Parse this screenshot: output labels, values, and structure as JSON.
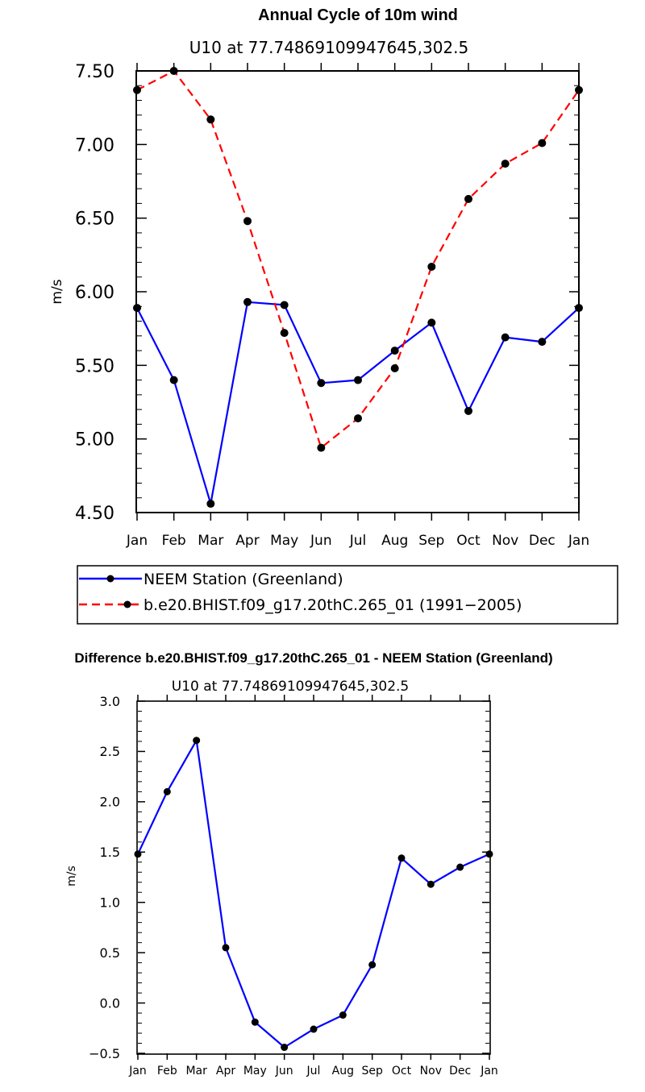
{
  "chart_data": [
    {
      "type": "line",
      "title": "Annual Cycle of 10m wind",
      "subtitle": "U10 at 77.74869109947645,302.5",
      "xlabel": "",
      "ylabel": "m/s",
      "categories": [
        "Jan",
        "Feb",
        "Mar",
        "Apr",
        "May",
        "Jun",
        "Jul",
        "Aug",
        "Sep",
        "Oct",
        "Nov",
        "Dec",
        "Jan"
      ],
      "ylim": [
        4.5,
        7.5
      ],
      "yticks": [
        "4.50",
        "5.00",
        "5.50",
        "6.00",
        "6.50",
        "7.00",
        "7.50"
      ],
      "grid": false,
      "series": [
        {
          "name": "NEEM Station (Greenland)",
          "color": "#0000ff",
          "style": "solid",
          "values": [
            5.89,
            5.4,
            4.56,
            5.93,
            5.91,
            5.38,
            5.4,
            5.6,
            5.79,
            5.19,
            5.69,
            5.66,
            5.89
          ]
        },
        {
          "name": "b.e20.BHIST.f09_g17.20thC.265_01 (1991−2005)",
          "color": "#ff0000",
          "style": "dashed",
          "values": [
            7.37,
            7.5,
            7.17,
            6.48,
            5.72,
            4.94,
            5.14,
            5.48,
            6.17,
            6.63,
            6.87,
            7.01,
            7.37
          ]
        }
      ],
      "legend": "bottom"
    },
    {
      "type": "line",
      "title": "Difference b.e20.BHIST.f09_g17.20thC.265_01 - NEEM Station (Greenland)",
      "subtitle": "U10 at 77.74869109947645,302.5",
      "xlabel": "",
      "ylabel": "m/s",
      "categories": [
        "Jan",
        "Feb",
        "Mar",
        "Apr",
        "May",
        "Jun",
        "Jul",
        "Aug",
        "Sep",
        "Oct",
        "Nov",
        "Dec",
        "Jan"
      ],
      "ylim": [
        -0.5,
        3.0
      ],
      "yticks": [
        "−0.5",
        "0.0",
        "0.5",
        "1.0",
        "1.5",
        "2.0",
        "2.5",
        "3.0"
      ],
      "grid": false,
      "series": [
        {
          "name": "Difference",
          "color": "#0000ff",
          "style": "solid",
          "values": [
            1.48,
            2.1,
            2.61,
            0.55,
            -0.19,
            -0.44,
            -0.26,
            -0.12,
            0.38,
            1.44,
            1.18,
            1.35,
            1.48
          ]
        }
      ]
    }
  ]
}
